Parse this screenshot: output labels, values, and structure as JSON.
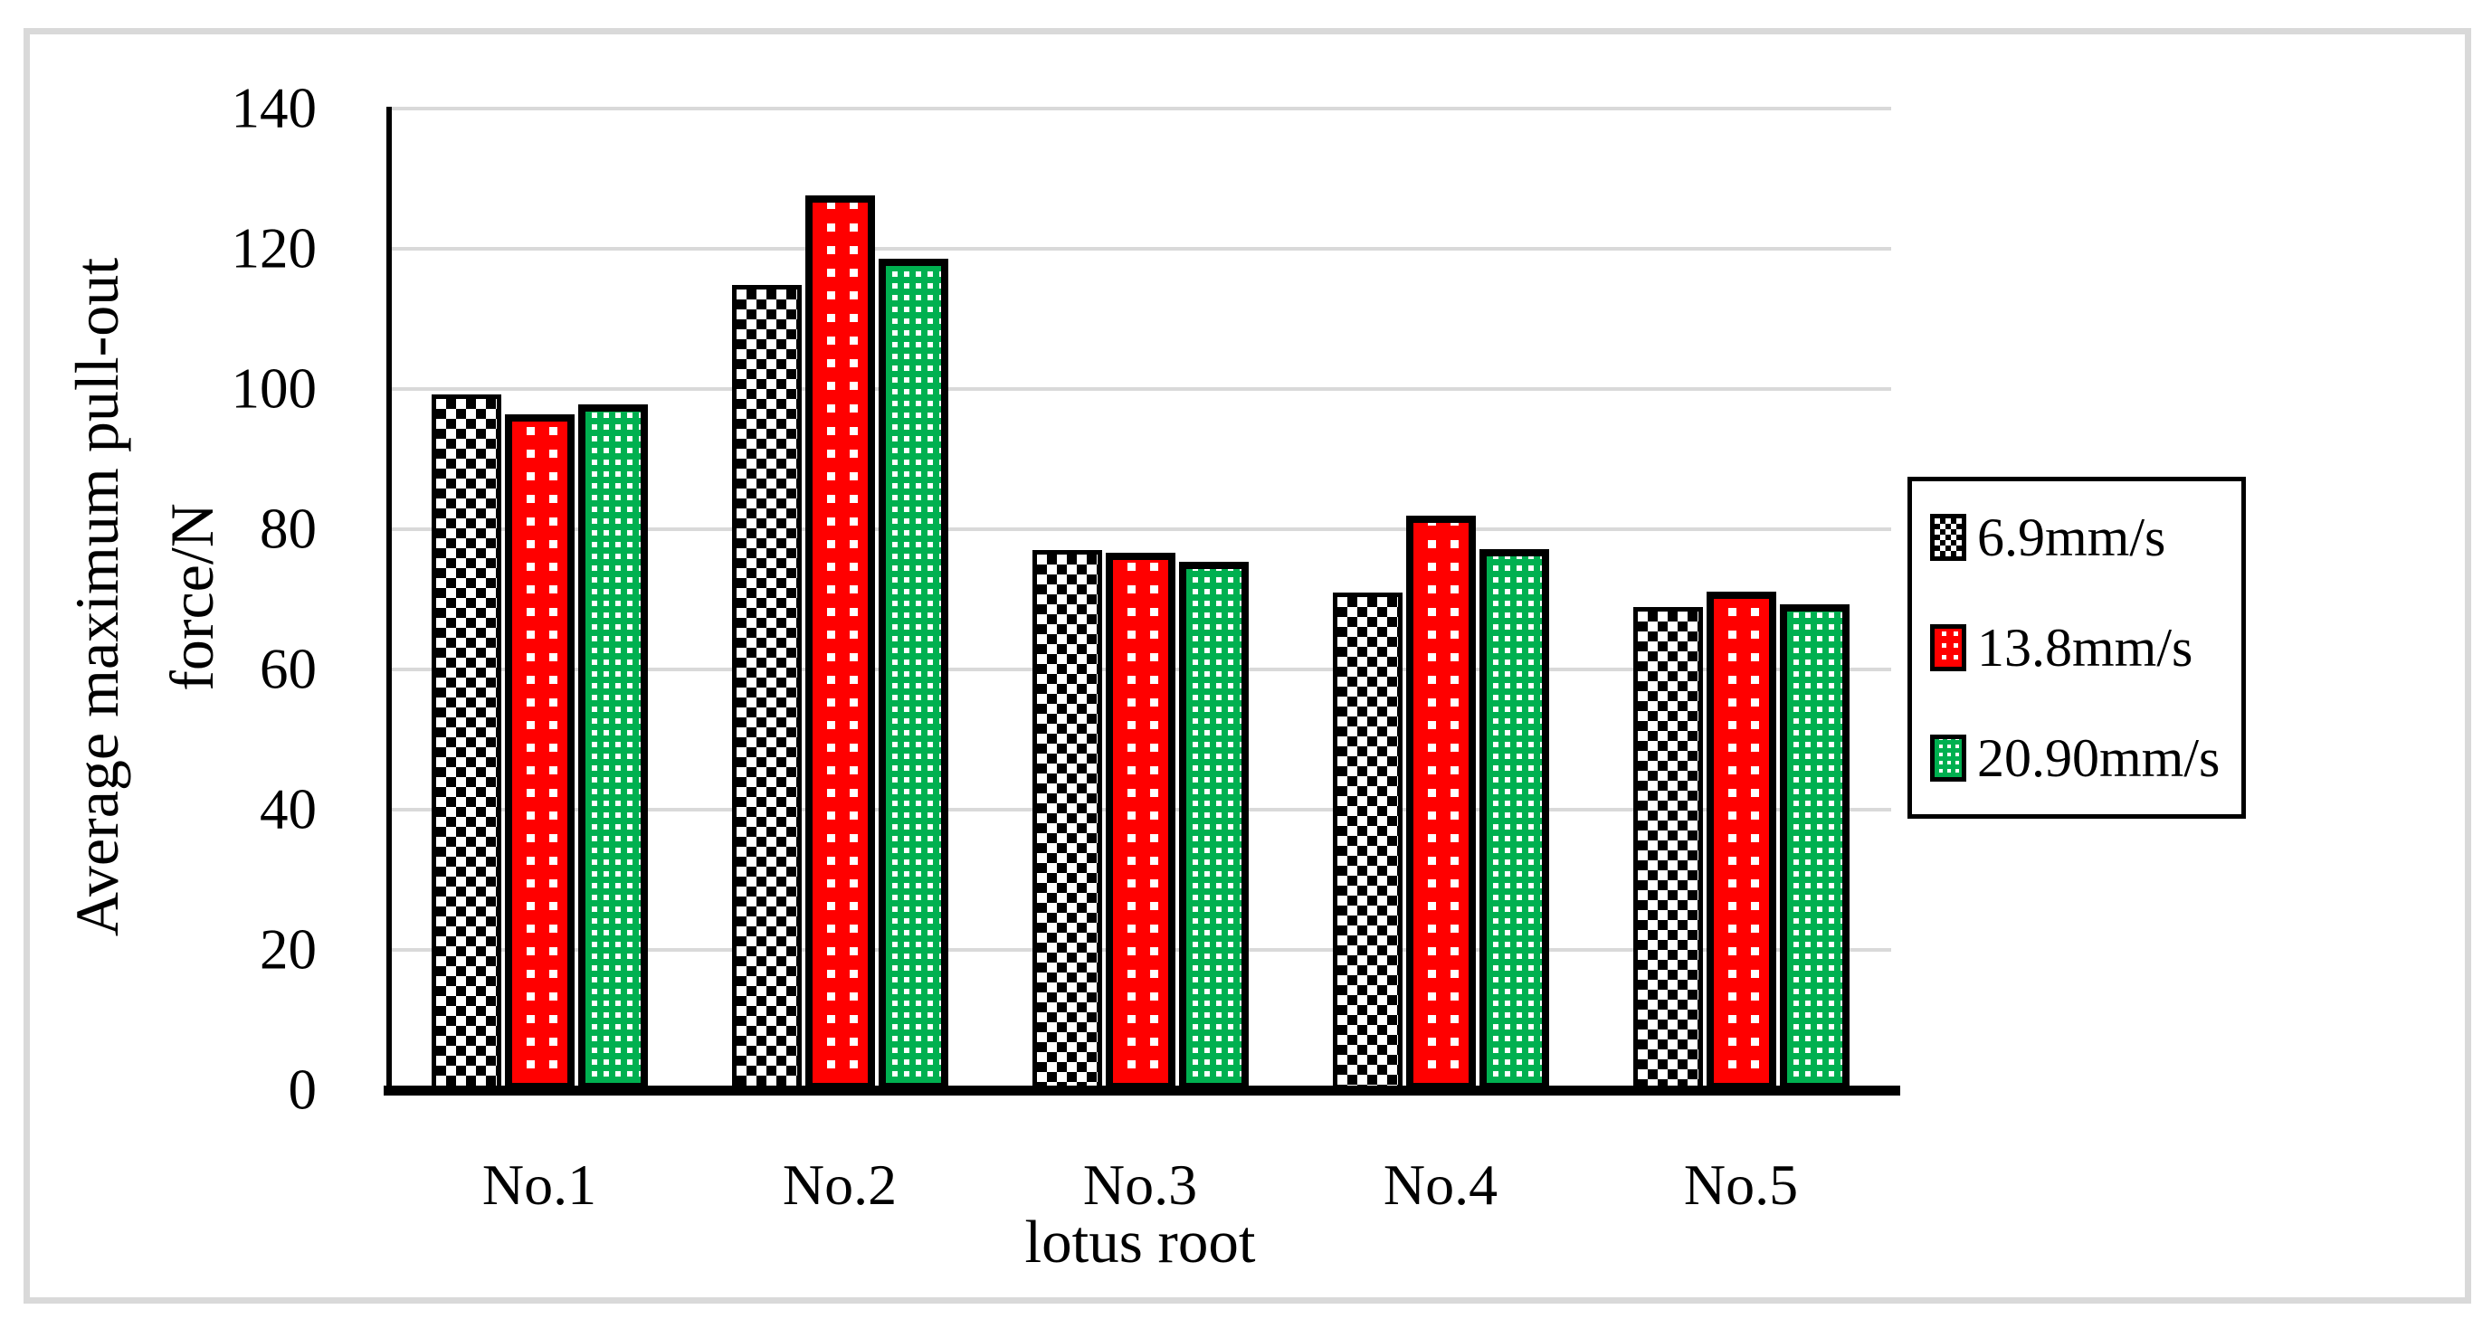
{
  "chart_data": {
    "type": "bar",
    "title": "",
    "categories": [
      "No.1",
      "No.2",
      "No.3",
      "No.4",
      "No.5"
    ],
    "series": [
      {
        "name": "6.9mm/s",
        "pattern": "black-white-checker",
        "color": "#000000",
        "values": [
          99.2,
          114.9,
          77.0,
          71.0,
          68.9
        ]
      },
      {
        "name": "13.8mm/s",
        "pattern": "red-white-dots",
        "color": "#ff0000",
        "values": [
          96.4,
          127.6,
          76.7,
          81.9,
          71.1
        ]
      },
      {
        "name": "20.90mm/s",
        "pattern": "green-white-dots",
        "color": "#00b050",
        "values": [
          97.8,
          118.6,
          75.4,
          77.2,
          69.3
        ]
      }
    ],
    "xlabel": "lotus root",
    "ylabel": "Average maximum pull-out force/N",
    "ylabel_lines": [
      "Average maximum pull-out",
      "force/N"
    ],
    "ylim": [
      0,
      140
    ],
    "yticks": [
      0,
      20,
      40,
      60,
      80,
      100,
      120,
      140
    ],
    "grid": "horizontal",
    "legend_position": "right"
  },
  "colors": {
    "gridline": "#d9d9d9",
    "frame_border": "#d9d9d9",
    "axis": "#000000",
    "background": "#ffffff"
  }
}
